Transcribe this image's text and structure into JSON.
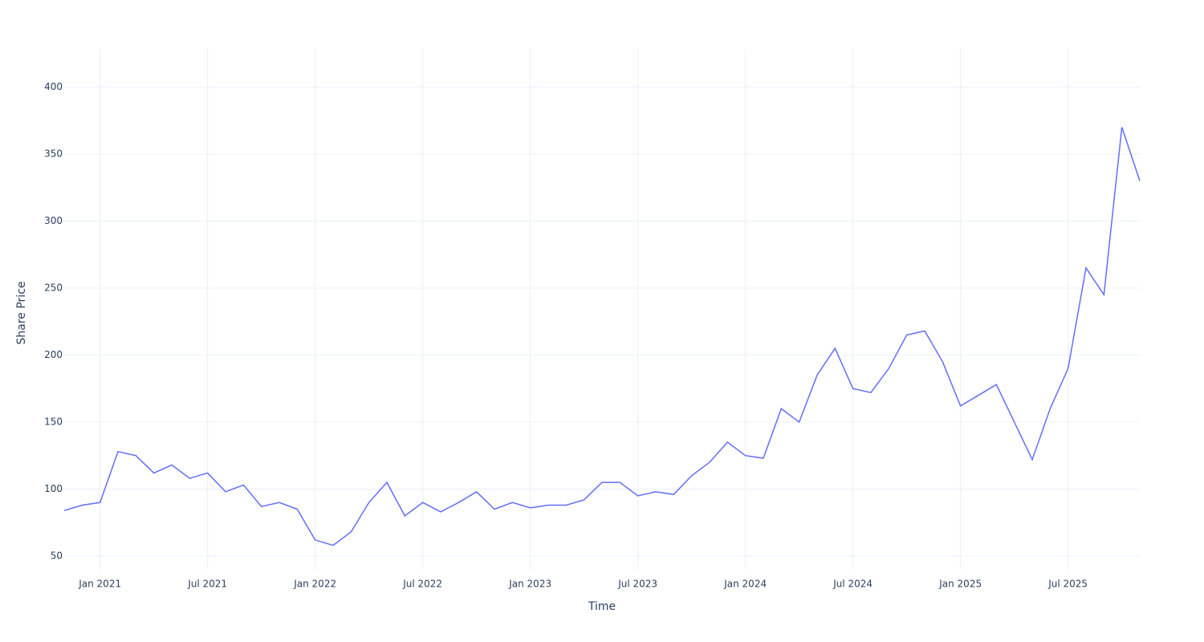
{
  "chart_data": {
    "type": "line",
    "x_label": "Time",
    "y_label": "Share Price",
    "color": "#636efa",
    "grid": true,
    "x": [
      "2020-11",
      "2020-12",
      "2021-01",
      "2021-02",
      "2021-03",
      "2021-04",
      "2021-05",
      "2021-06",
      "2021-07",
      "2021-08",
      "2021-09",
      "2021-10",
      "2021-11",
      "2021-12",
      "2022-01",
      "2022-02",
      "2022-03",
      "2022-04",
      "2022-05",
      "2022-06",
      "2022-07",
      "2022-08",
      "2022-09",
      "2022-10",
      "2022-11",
      "2022-12",
      "2023-01",
      "2023-02",
      "2023-03",
      "2023-04",
      "2023-05",
      "2023-06",
      "2023-07",
      "2023-08",
      "2023-09",
      "2023-10",
      "2023-11",
      "2023-12",
      "2024-01",
      "2024-02",
      "2024-03",
      "2024-04",
      "2024-05",
      "2024-06",
      "2024-07",
      "2024-08",
      "2024-09",
      "2024-10",
      "2024-11",
      "2024-12",
      "2025-01",
      "2025-02",
      "2025-03",
      "2025-04",
      "2025-05",
      "2025-06",
      "2025-07",
      "2025-08",
      "2025-09",
      "2025-10",
      "2025-11"
    ],
    "values": [
      84,
      88,
      90,
      128,
      125,
      112,
      118,
      108,
      112,
      98,
      103,
      87,
      90,
      85,
      62,
      58,
      68,
      90,
      105,
      80,
      90,
      83,
      90,
      98,
      85,
      90,
      86,
      88,
      88,
      92,
      105,
      105,
      95,
      98,
      96,
      110,
      120,
      135,
      125,
      123,
      160,
      150,
      185,
      205,
      175,
      172,
      190,
      215,
      218,
      195,
      162,
      170,
      178,
      150,
      122,
      160,
      190,
      265,
      245,
      370,
      330
    ],
    "xlim": [
      "2020-11",
      "2025-11"
    ],
    "xticks": [
      {
        "value": "2021-01",
        "label": "Jan 2021"
      },
      {
        "value": "2021-07",
        "label": "Jul 2021"
      },
      {
        "value": "2022-01",
        "label": "Jan 2022"
      },
      {
        "value": "2022-07",
        "label": "Jul 2022"
      },
      {
        "value": "2023-01",
        "label": "Jan 2023"
      },
      {
        "value": "2023-07",
        "label": "Jul 2023"
      },
      {
        "value": "2024-01",
        "label": "Jan 2024"
      },
      {
        "value": "2024-07",
        "label": "Jul 2024"
      },
      {
        "value": "2025-01",
        "label": "Jan 2025"
      },
      {
        "value": "2025-07",
        "label": "Jul 2025"
      }
    ],
    "ylim": [
      39.8,
      429
    ],
    "yticks": [
      50,
      100,
      150,
      200,
      250,
      300,
      350,
      400
    ]
  }
}
